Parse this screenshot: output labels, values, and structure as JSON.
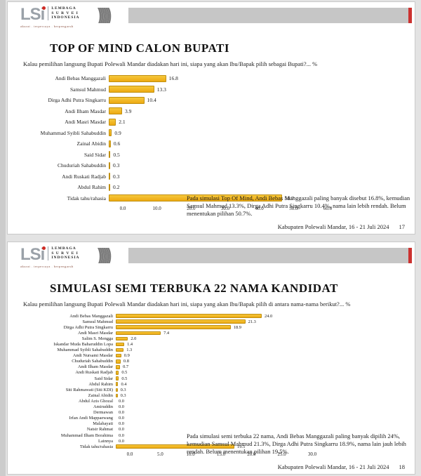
{
  "logo": {
    "mark": "LSi",
    "line1": "LEMBAGA",
    "line2": "S U R V E I",
    "line3": "INDONESIA",
    "tagline": "akurat . terpercaya . berpengaruh"
  },
  "slides": [
    {
      "title": "TOP OF MIND CALON BUPATI",
      "question": "Kalau pemilihan langsung Bupati Polewali Mandar diadakan hari ini, siapa yang akan Ibu/Bapak pilih sebagai Bupati?... %",
      "annotation": "Pada simulasi Top Of Mind, Andi Bebas Manggazali paling banyak disebut 16.8%, kemudian Samsul Mahmud 13.3%, Dirga Adhi Putra Singkarru 10.4%, nama lain lebih rendah. Belum menentukan pilihan 50.7%.",
      "footer": "Kabupaten Polewali Mandar, 16 - 21 Juli 2024",
      "page": "17"
    },
    {
      "title": "SIMULASI SEMI TERBUKA 22 NAMA KANDIDAT",
      "question": "Kalau pemilihan langsung Bupati Polewali Mandar diadakan hari ini, siapa yang akan Ibu/Bapak pilih di antara nama-nama berikut?... %",
      "annotation": "Pada simulasi semi terbuka 22 nama, Andi Bebas Manggazali paling banyak dipilih 24%, kemudian Samsul Mahmud 21.3%, Dirga Adhi Putra Singkarru 18.9%, nama lain jauh lebih rendah. Belum menentukan pilihan 19.5%.",
      "footer": "Kabupaten Polewali Mandar, 16 - 21 Juli 2024",
      "page": "18"
    }
  ],
  "chart_data": [
    {
      "type": "bar",
      "orientation": "horizontal",
      "title": "TOP OF MIND CALON BUPATI",
      "categories": [
        "Andi Bebas Manggazali",
        "Samsul Mahmud",
        "Dirga Adhi Putra Singkarru",
        "Andi Ilham Masdar",
        "Andi Masri Masdar",
        "Muhammad Syibli Sahabuddin",
        "Zainal Abidin",
        "Said Sidar",
        "Chuduriah Sahabuddin",
        "Andi Ruskati Radjab",
        "Abdul Rahim",
        "Tidak tahu/rahasia"
      ],
      "values": [
        16.8,
        13.3,
        10.4,
        3.9,
        2.1,
        0.9,
        0.6,
        0.5,
        0.3,
        0.3,
        0.2,
        50.7
      ],
      "xlabel": "",
      "ylabel": "",
      "xlim": [
        0,
        60
      ],
      "tick_labels": [
        "0.0",
        "10.0",
        "20.0",
        "30.0",
        "40.0",
        "50.0",
        "60.0"
      ],
      "grid": false,
      "legend": false,
      "bar_color": "#F0B11E"
    },
    {
      "type": "bar",
      "orientation": "horizontal",
      "title": "SIMULASI SEMI TERBUKA 22 NAMA KANDIDAT",
      "categories": [
        "Andi Bebas Manggazali",
        "Samsul Mahmud",
        "Dirga Adhi Putra Singkarru",
        "Andi Masri Masdar",
        "Salim S. Mengga",
        "Iskandar Muda Baharuddin Lopa",
        "Muhammad Syibli Sahabuddin",
        "Andi Nursami Masdar",
        "Chuduriah Sahabuddin",
        "Andi Ilham Masdar",
        "Andi Ruskati Radjab",
        "Said Sidar",
        "Abdul Rahim",
        "Siti Rahmawati (Siti KDI)",
        "Zainal Abidin",
        "Abdul Azis Ghozal",
        "Amiruddin",
        "Dermawan",
        "Irfan Andi Mappaewang",
        "Malahayati",
        "Natsir Rahmat",
        "Muhammad Ilham Borahima",
        "Lainnya",
        "Tidak tahu/rahasia"
      ],
      "values": [
        24.0,
        21.3,
        18.9,
        7.4,
        2.0,
        1.4,
        1.3,
        0.9,
        0.8,
        0.7,
        0.5,
        0.5,
        0.4,
        0.3,
        0.3,
        0.0,
        0.0,
        0.0,
        0.0,
        0.0,
        0.0,
        0.0,
        0.0,
        19.5
      ],
      "xlabel": "",
      "ylabel": "",
      "xlim": [
        0,
        30
      ],
      "tick_labels": [
        "0.0",
        "5.0",
        "10.0",
        "15.0",
        "20.0",
        "25.0",
        "30.0"
      ],
      "grid": false,
      "legend": false,
      "bar_color": "#F0B11E"
    }
  ]
}
